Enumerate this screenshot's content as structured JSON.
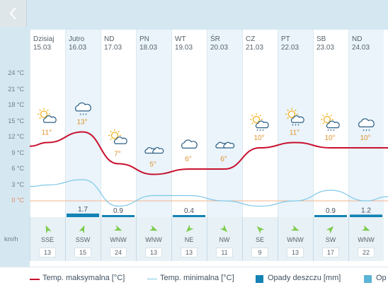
{
  "nav": {
    "back_icon": "chevron-left-icon"
  },
  "days": [
    {
      "name": "Dzisiaj",
      "date": "15.03"
    },
    {
      "name": "Jutro",
      "date": "16.03"
    },
    {
      "name": "ND",
      "date": "17.03"
    },
    {
      "name": "PN",
      "date": "18.03"
    },
    {
      "name": "WT",
      "date": "19.03"
    },
    {
      "name": "ŚR",
      "date": "20.03"
    },
    {
      "name": "CZ",
      "date": "21.03"
    },
    {
      "name": "PT",
      "date": "22.03"
    },
    {
      "name": "SB",
      "date": "23.03"
    },
    {
      "name": "ND",
      "date": "24.03"
    }
  ],
  "y_ticks": [
    "24 °C",
    "21 °C",
    "18 °C",
    "15 °C",
    "12 °C",
    "9 °C",
    "6 °C",
    "3 °C",
    "0 °C"
  ],
  "chart_data": {
    "type": "line",
    "y_range": [
      0,
      24
    ],
    "max_temps": [
      11,
      13,
      7,
      5,
      6,
      6,
      10,
      11,
      10,
      10
    ],
    "min_temps": [
      3,
      4,
      -1,
      1,
      1,
      0,
      -1,
      0,
      2,
      0
    ],
    "max_labels": [
      "11°",
      "13°",
      "7°",
      "5°",
      "6°",
      "6°",
      "10°",
      "11°",
      "10°",
      "10°"
    ],
    "precip": [
      null,
      1.7,
      0.9,
      null,
      0.4,
      null,
      null,
      null,
      0.9,
      1.2
    ],
    "precip_labels": [
      "",
      "1.7",
      "0.9",
      "",
      "0.4",
      "",
      "",
      "",
      "0.9",
      "1.2"
    ],
    "icons": [
      "sun-cloud-icon",
      "cloud-rain-icon",
      "sun-cloud-icon",
      "clouds-icon",
      "cloud-icon",
      "clouds-icon",
      "sun-cloud-rain-icon",
      "sun-cloud-rain-icon",
      "sun-cloud-rain-icon",
      "cloud-rain-icon"
    ]
  },
  "wind": {
    "unit": "km/h",
    "directions": [
      "SSE",
      "SSW",
      "WNW",
      "WNW",
      "NE",
      "NW",
      "SE",
      "WNW",
      "SW",
      "WNW"
    ],
    "speeds": [
      "13",
      "15",
      "24",
      "13",
      "13",
      "11",
      "9",
      "13",
      "17",
      "22"
    ]
  },
  "legend": {
    "max_label": "Temp. maksymalna [°C]",
    "min_label": "Temp. minimalna [°C]",
    "rain_label": "Opady deszczu [mm]",
    "other_label": "Op"
  },
  "colors": {
    "max_line": "#c8102e",
    "min_line": "#7fc8e8",
    "rain": "#1382b5",
    "other": "#5ab4d6",
    "temp_label": "#e0932e",
    "arrow": "#7ccb4a"
  }
}
